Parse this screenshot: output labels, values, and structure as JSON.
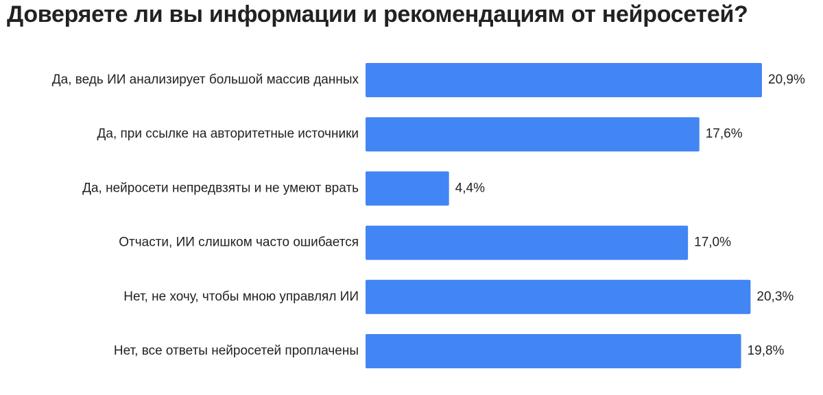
{
  "chart_data": {
    "type": "bar",
    "orientation": "horizontal",
    "title": "Доверяете ли вы информации и рекомендациям от нейросетей?",
    "categories": [
      "Да, ведь ИИ анализирует большой массив данных",
      "Да, при ссылке на авторитетные источники",
      "Да, нейросети непредвзяты и не умеют врать",
      "Отчасти, ИИ слишком часто ошибается",
      "Нет, не хочу, чтобы мною управлял ИИ",
      "Нет, все ответы нейросетей проплачены"
    ],
    "values": [
      20.9,
      17.6,
      4.4,
      17.0,
      20.3,
      19.8
    ],
    "value_labels": [
      "20,9%",
      "17,6%",
      "4,4%",
      "17,0%",
      "20,3%",
      "19,8%"
    ],
    "unit": "%",
    "xlim": [
      0,
      20.9
    ],
    "grid": false,
    "legend": "none",
    "bar_color": "#4285f4",
    "text_color": "#222222"
  }
}
